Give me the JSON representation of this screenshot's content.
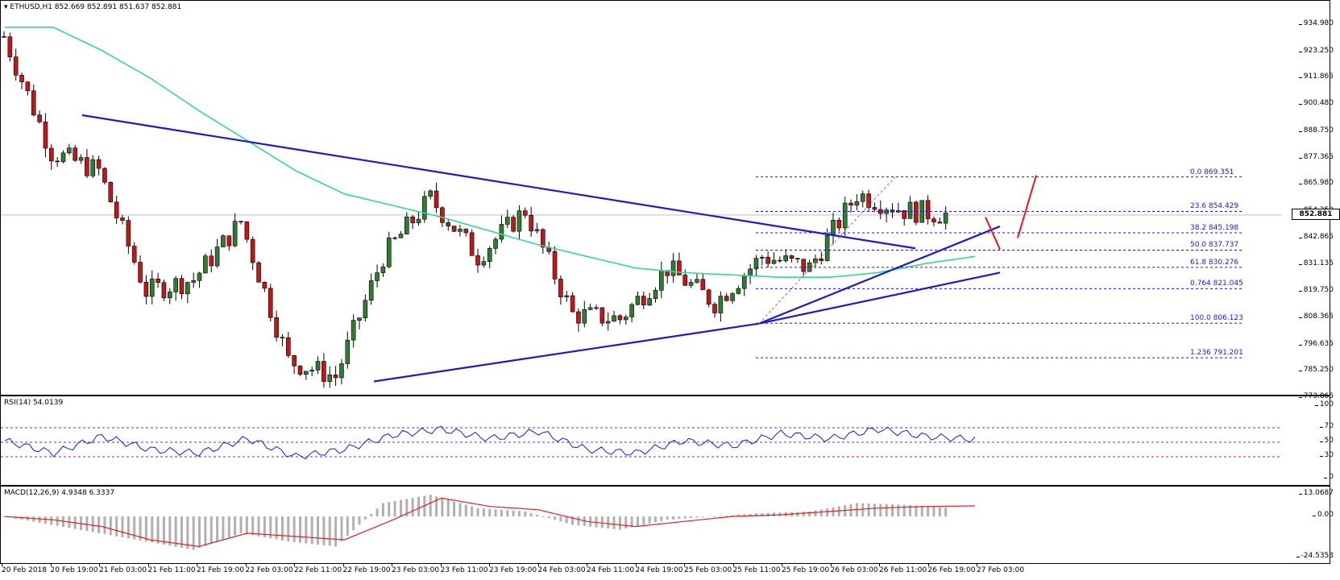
{
  "header": {
    "symbol_line": "ETHUSD,H1  852.669 852.891 851.637 852.881",
    "menu_icon": "triangle-down-icon"
  },
  "price_axis": {
    "ticks": [
      "934.980",
      "923.250",
      "911.865",
      "900.480",
      "888.750",
      "877.365",
      "865.980",
      "854.250",
      "842.865",
      "831.135",
      "819.750",
      "808.365",
      "796.635",
      "785.250",
      "773.865"
    ],
    "current_price": "852.881"
  },
  "fibonacci": {
    "levels": [
      {
        "label": "0.0  869.351",
        "price": 869.351
      },
      {
        "label": "23.6  854.429",
        "price": 854.429
      },
      {
        "label": "38.2  845.198",
        "price": 845.198
      },
      {
        "label": "50.0  837.737",
        "price": 837.737
      },
      {
        "label": "61.8  830.276",
        "price": 830.276
      },
      {
        "label": "0.764  821.045",
        "price": 821.045
      },
      {
        "label": "100.0  806.123",
        "price": 806.123
      },
      {
        "label": "1.236  791.201",
        "price": 791.201
      }
    ]
  },
  "rsi": {
    "title": "RSI(14) 54.0139",
    "ticks": [
      "100",
      "70",
      "50",
      "30",
      "0"
    ]
  },
  "macd": {
    "title": "MACD(12,26,9) 4.9348 6.3337",
    "ticks": [
      "13.0687",
      "0.00",
      "-24.5353"
    ]
  },
  "time_axis": {
    "labels": [
      "20 Feb 2018",
      "20 Feb 19:00",
      "21 Feb 03:00",
      "21 Feb 11:00",
      "21 Feb 19:00",
      "22 Feb 03:00",
      "22 Feb 11:00",
      "22 Feb 19:00",
      "23 Feb 03:00",
      "23 Feb 11:00",
      "23 Feb 19:00",
      "24 Feb 03:00",
      "24 Feb 11:00",
      "24 Feb 19:00",
      "25 Feb 03:00",
      "25 Feb 11:00",
      "25 Feb 19:00",
      "26 Feb 03:00",
      "26 Feb 11:00",
      "26 Feb 19:00",
      "27 Feb 03:00"
    ]
  },
  "colors": {
    "bull": "#2e7d32",
    "bear": "#c0171b",
    "trendline": "#1a1acd",
    "ma": "#32d993",
    "rsi_line": "#1a1acd",
    "rsi_levels": "#c800c8",
    "macd_signal": "#e02020",
    "macd_hist": "#b0b0b0",
    "arrow": "#e0191e"
  },
  "chart_data": [
    {
      "type": "candlestick",
      "title": "ETHUSD,H1",
      "ohlc_header": {
        "open": 852.669,
        "high": 852.891,
        "low": 851.637,
        "close": 852.881
      },
      "ylim": [
        773.865,
        940.0
      ],
      "x": [
        "20 Feb 2018",
        "20 Feb 19:00",
        "21 Feb 03:00",
        "21 Feb 11:00",
        "21 Feb 19:00",
        "22 Feb 03:00",
        "22 Feb 11:00",
        "22 Feb 19:00",
        "23 Feb 03:00",
        "23 Feb 11:00",
        "23 Feb 19:00",
        "24 Feb 03:00",
        "24 Feb 11:00",
        "24 Feb 19:00",
        "25 Feb 03:00",
        "25 Feb 11:00",
        "25 Feb 19:00",
        "26 Feb 03:00",
        "26 Feb 11:00",
        "26 Feb 19:00",
        "27 Feb 03:00"
      ],
      "approx_close": [
        930,
        880,
        872,
        820,
        825,
        850,
        790,
        783,
        835,
        860,
        835,
        855,
        810,
        808,
        830,
        815,
        835,
        830,
        862,
        855,
        852.9
      ],
      "trendlines": [
        {
          "name": "bearish trend line",
          "from": [
            "20 Feb 19:00",
            896
          ],
          "to": [
            "26 Feb 03:00",
            838
          ]
        },
        {
          "name": "bullish trend line",
          "from": [
            "22 Feb 19:00",
            781
          ],
          "to": [
            "25 Feb 11:00",
            806
          ]
        },
        {
          "name": "bullish trend line 2",
          "from": [
            "25 Feb 11:00",
            806
          ],
          "to": [
            "27 Feb 03:00",
            828
          ]
        },
        {
          "name": "bullish trend line 3",
          "from": [
            "25 Feb 11:00",
            806
          ],
          "to": [
            "27 Feb 03:00",
            848
          ]
        }
      ],
      "moving_average": {
        "name": "100 SMA",
        "approx_values": [
          934,
          934,
          924,
          912,
          898,
          885,
          872,
          862,
          857,
          852,
          846,
          840,
          835,
          830,
          828,
          827,
          826,
          826,
          828,
          832,
          835
        ]
      },
      "annotations": [
        "Fibonacci retracement 806.123 -> 869.351",
        "red arrow down then up near 845"
      ]
    },
    {
      "type": "line",
      "title": "RSI(14) 54.0139",
      "ylim": [
        0,
        100
      ],
      "levels": [
        70,
        50,
        30
      ],
      "approx_values": [
        52,
        35,
        58,
        40,
        35,
        55,
        30,
        40,
        60,
        68,
        55,
        65,
        40,
        35,
        52,
        45,
        62,
        55,
        68,
        58,
        54
      ]
    },
    {
      "type": "bar+line",
      "title": "MACD(12,26,9) 4.9348 6.3337",
      "ylim": [
        -24.5353,
        13.0687
      ],
      "approx_hist": [
        0,
        -5,
        -10,
        -15,
        -20,
        -10,
        -15,
        -18,
        8,
        13,
        5,
        3,
        -5,
        -8,
        -2,
        0,
        2,
        3,
        8,
        7,
        5
      ],
      "approx_signal": [
        0,
        -2,
        -6,
        -14,
        -18,
        -10,
        -12,
        -14,
        -2,
        11,
        6,
        4,
        -3,
        -6,
        -3,
        0,
        1,
        3,
        5,
        6,
        6.3
      ]
    }
  ]
}
